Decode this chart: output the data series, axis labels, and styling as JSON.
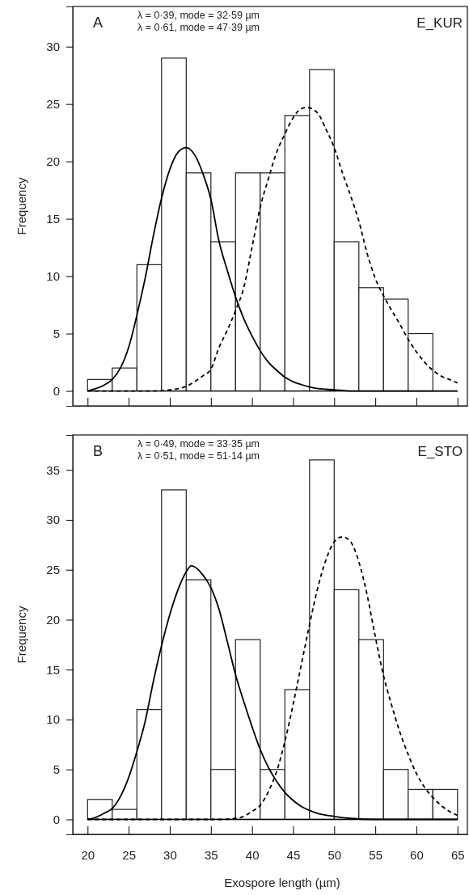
{
  "chart_data": [
    {
      "type": "histogram",
      "ylabel": "Frequency",
      "annotations": [
        "A",
        "λ = 0·39, mode = 32·59 µm",
        "λ = 0·61, mode = 47·39 µm",
        "E_KUR"
      ],
      "bins": [
        20,
        23,
        26,
        29,
        32,
        35,
        38,
        41,
        44,
        47,
        50,
        53,
        56,
        59,
        62
      ],
      "values": [
        1,
        2,
        11,
        29,
        19,
        13,
        19,
        19,
        24,
        28,
        13,
        9,
        8,
        5
      ],
      "color": "#ffffff",
      "series": [
        {
          "type": "line",
          "color": "#000000",
          "line_style": "solid",
          "x": [
            20,
            21,
            22,
            23,
            24,
            25,
            26,
            27,
            28,
            29,
            30,
            31,
            32,
            33,
            34,
            35,
            36,
            37,
            38,
            39,
            40,
            41,
            42,
            43,
            44,
            45,
            46,
            47,
            48,
            50,
            52,
            55,
            65
          ],
          "values": [
            0,
            0.2,
            0.5,
            1.0,
            2.0,
            3.8,
            6.6,
            9.8,
            13.5,
            16.8,
            19.3,
            20.8,
            21.2,
            20.6,
            19.0,
            16.7,
            13.0,
            10.5,
            8.2,
            6.3,
            4.8,
            3.5,
            2.5,
            1.8,
            1.2,
            0.8,
            0.55,
            0.35,
            0.2,
            0.1,
            0,
            0,
            0
          ]
        },
        {
          "type": "line",
          "color": "#000000",
          "line_style": "dashed",
          "x": [
            20,
            28,
            30,
            32,
            33,
            34,
            35,
            36,
            37,
            38,
            39,
            40,
            41,
            42,
            43,
            44,
            45,
            46,
            46.7,
            48,
            49,
            50,
            51,
            52,
            53,
            54,
            55,
            56,
            57,
            58,
            59,
            60,
            61,
            62,
            63,
            64,
            65
          ],
          "values": [
            0,
            0,
            0.1,
            0.4,
            0.8,
            1.3,
            1.9,
            3.8,
            5.3,
            7.0,
            9.0,
            12.5,
            16.0,
            18.5,
            20.8,
            22.4,
            23.8,
            24.6,
            24.7,
            24.2,
            22.8,
            21.2,
            19.0,
            17.0,
            14.8,
            12.0,
            9.8,
            8.3,
            7.0,
            5.8,
            4.5,
            3.4,
            2.5,
            1.8,
            1.3,
            1.0,
            0.7
          ]
        }
      ],
      "xlim": [
        18.2,
        66.2
      ],
      "xticks": [
        20,
        25,
        30,
        35,
        40,
        45,
        50,
        55,
        60,
        65
      ],
      "ylim": [
        -1.3,
        33.5
      ],
      "yticks": [
        0,
        5,
        10,
        15,
        20,
        25,
        30
      ],
      "tick_labels": "y",
      "ref_lines": [
        {
          "axis": "y",
          "value": 0,
          "color": "#000000"
        }
      ]
    },
    {
      "type": "histogram",
      "ylabel": "Frequency",
      "xlabel": "Exospore length (µm)",
      "annotations": [
        "B",
        "λ = 0·49, mode = 33·35 µm",
        "λ = 0·51, mode = 51·14 µm",
        "E_STO"
      ],
      "bins": [
        20,
        23,
        26,
        29,
        32,
        35,
        38,
        41,
        44,
        47,
        50,
        53,
        56,
        59,
        62,
        65
      ],
      "values": [
        2,
        1,
        11,
        33,
        24,
        5,
        18,
        5,
        13,
        36,
        23,
        18,
        5,
        3,
        3
      ],
      "color": "#ffffff",
      "series": [
        {
          "type": "line",
          "color": "#000000",
          "line_style": "solid",
          "x": [
            20,
            21,
            22,
            23,
            24,
            25,
            26,
            27,
            28,
            29,
            30,
            31,
            32,
            32.6,
            33,
            34,
            35,
            36,
            37,
            38,
            39,
            40,
            41,
            42,
            43,
            44,
            45,
            46,
            47,
            48,
            50,
            52,
            55,
            65
          ],
          "values": [
            0,
            0.2,
            0.6,
            1.1,
            2.3,
            4.2,
            6.8,
            9.8,
            13.8,
            17.4,
            20.5,
            23.0,
            24.8,
            25.4,
            25.3,
            24.5,
            23.2,
            21.0,
            17.8,
            14.5,
            11.8,
            9.3,
            7.0,
            5.2,
            3.8,
            2.7,
            1.9,
            1.3,
            0.9,
            0.6,
            0.3,
            0.1,
            0,
            0
          ]
        },
        {
          "type": "line",
          "color": "#000000",
          "line_style": "dashed",
          "x": [
            20,
            36,
            38,
            39,
            40,
            41,
            42,
            43,
            44,
            45,
            46,
            47,
            48,
            49,
            50,
            51,
            52,
            53,
            54,
            55,
            56,
            57,
            58,
            59,
            60,
            61,
            62,
            63,
            64,
            65
          ],
          "values": [
            0,
            0,
            0.1,
            0.3,
            0.8,
            1.4,
            2.8,
            4.8,
            7.8,
            11.5,
            15.5,
            19.5,
            23.2,
            26.0,
            27.8,
            28.3,
            27.8,
            25.8,
            22.5,
            18.3,
            14.4,
            11.4,
            8.7,
            6.5,
            4.6,
            3.2,
            2.2,
            1.4,
            0.8,
            0.4
          ]
        }
      ],
      "xlim": [
        18.2,
        66.2
      ],
      "xticks": [
        20,
        25,
        30,
        35,
        40,
        45,
        50,
        55,
        60,
        65
      ],
      "ylim": [
        -1.5,
        38.5
      ],
      "yticks": [
        0,
        5,
        10,
        15,
        20,
        25,
        30,
        35
      ],
      "ref_lines": [
        {
          "axis": "y",
          "value": 0,
          "color": "#000000"
        }
      ]
    }
  ]
}
